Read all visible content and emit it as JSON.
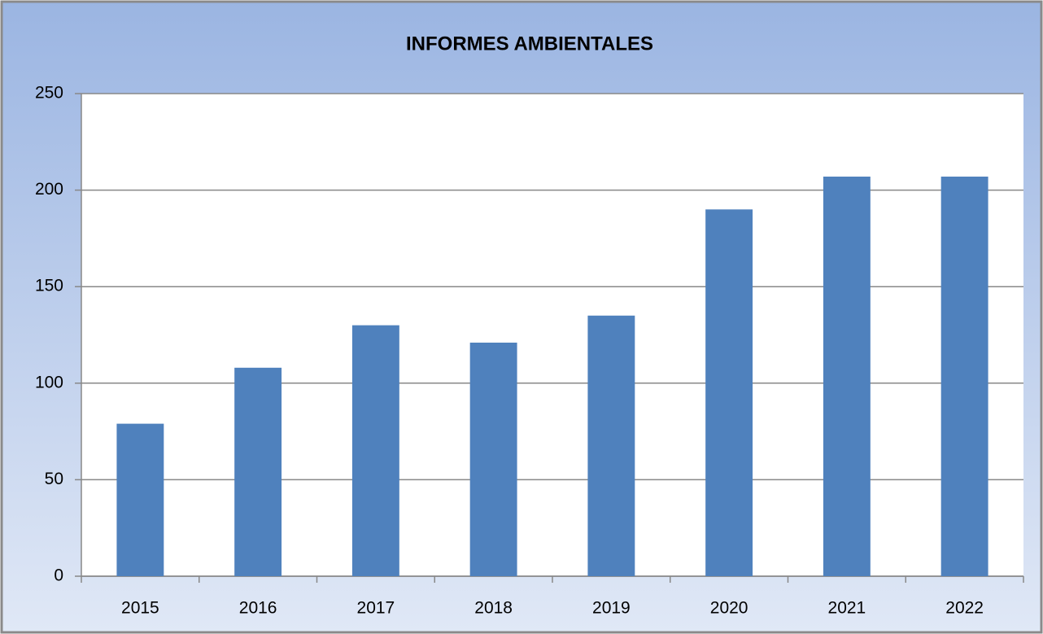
{
  "chart_data": {
    "type": "bar",
    "title": "INFORMES AMBIENTALES",
    "categories": [
      "2015",
      "2016",
      "2017",
      "2018",
      "2019",
      "2020",
      "2021",
      "2022"
    ],
    "values": [
      79,
      108,
      130,
      121,
      135,
      190,
      207,
      207
    ],
    "color": "#4f81bd",
    "ylim": [
      0,
      250
    ],
    "yticks": [
      0,
      50,
      100,
      150,
      200,
      250
    ],
    "grid": true
  }
}
